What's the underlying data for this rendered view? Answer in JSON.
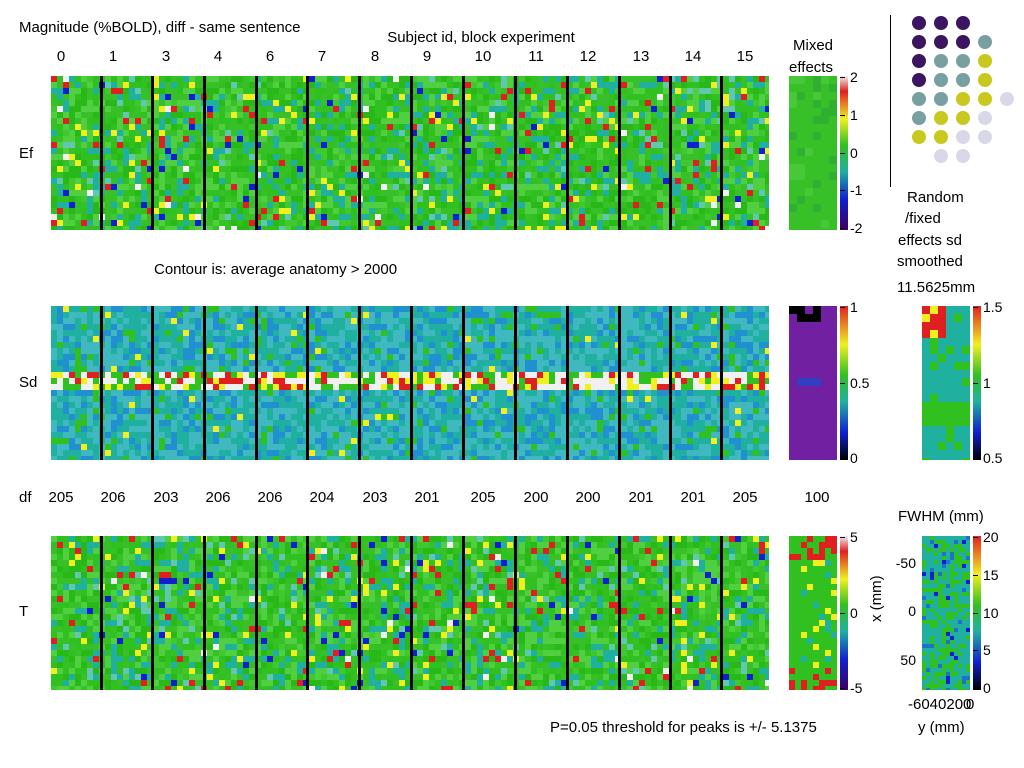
{
  "title": "Magnitude (%BOLD), diff - same sentence",
  "subject_header": "Subject id, block experiment",
  "subjects": [
    "0",
    "1",
    "3",
    "4",
    "6",
    "7",
    "8",
    "9",
    "10",
    "11",
    "12",
    "13",
    "14",
    "15"
  ],
  "mixed_label_1": "Mixed",
  "mixed_label_2": "effects",
  "row_labels": {
    "ef": "Ef",
    "sd": "Sd",
    "t": "T",
    "df": "df"
  },
  "contour_note": "Contour is: average anatomy > 2000",
  "df_values": [
    "205",
    "206",
    "203",
    "206",
    "206",
    "204",
    "203",
    "201",
    "205",
    "200",
    "200",
    "201",
    "201",
    "205"
  ],
  "df_mixed": "100",
  "ef_colorbar": {
    "ticks": [
      "2",
      "1",
      "0",
      "-1",
      "-2"
    ]
  },
  "sd_colorbar": {
    "ticks": [
      "1",
      "0.5",
      "0"
    ]
  },
  "t_colorbar": {
    "ticks": [
      "5",
      "0",
      "-5"
    ]
  },
  "random_fixed": {
    "lines": [
      "Random",
      "/fixed",
      "effects sd",
      "smoothed"
    ],
    "fwhm_value": "11.5625mm",
    "ticks": [
      "1.5",
      "1",
      "0.5"
    ]
  },
  "fwhm_plot": {
    "title": "FWHM (mm)",
    "xlabel": "y (mm)",
    "ylabel": "x (mm)",
    "x_ticks": "-6040200",
    "x_tick_tail": "0",
    "y_ticks": [
      "-50",
      "0",
      "50"
    ],
    "colorbar_ticks": [
      "20",
      "15",
      "10",
      "5",
      "0"
    ]
  },
  "threshold_note": "P=0.05 threshold for peaks is +/- 5.1375",
  "flame_colors": [
    "#3b1560",
    "#3b1560",
    "#3b1560",
    "#78a0a0",
    "#c8c81e",
    "#d8d8e8"
  ],
  "chart_data": {
    "type": "heatmap",
    "title": "Magnitude (%BOLD), diff - same sentence",
    "x_axis_label": "Subject id, block experiment",
    "categories": [
      "0",
      "1",
      "3",
      "4",
      "6",
      "7",
      "8",
      "9",
      "10",
      "11",
      "12",
      "13",
      "14",
      "15"
    ],
    "rows": [
      "Ef",
      "Sd",
      "T"
    ],
    "df": [
      205,
      206,
      203,
      206,
      206,
      204,
      203,
      201,
      205,
      200,
      200,
      201,
      201,
      205
    ],
    "df_mixed": 100,
    "ef_range": [
      -2,
      2
    ],
    "sd_range": [
      0,
      1
    ],
    "t_range": [
      -5,
      5
    ],
    "random_fixed_sd_range": [
      0.5,
      1.5
    ],
    "fwhm_range": [
      0,
      20
    ],
    "fwhm_smoothed_mm": 11.5625,
    "threshold": 5.1375
  }
}
